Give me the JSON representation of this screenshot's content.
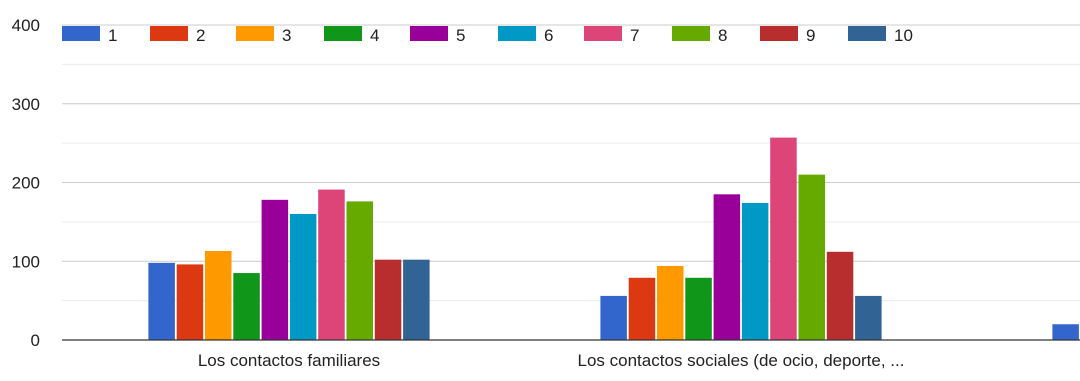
{
  "chart_data": {
    "type": "bar",
    "categories": [
      "Los contactos familiares",
      "Los contactos sociales (de ocio, deporte, ...",
      ""
    ],
    "ylim": [
      0,
      400
    ],
    "yticks": [
      0,
      100,
      200,
      300,
      400
    ],
    "grid": true,
    "legend_position": "top",
    "series": [
      {
        "name": "1",
        "color": "#3366cc",
        "values": [
          98,
          56,
          20
        ]
      },
      {
        "name": "2",
        "color": "#dc3912",
        "values": [
          96,
          79,
          null
        ]
      },
      {
        "name": "3",
        "color": "#ff9900",
        "values": [
          113,
          94,
          null
        ]
      },
      {
        "name": "4",
        "color": "#109618",
        "values": [
          85,
          79,
          null
        ]
      },
      {
        "name": "5",
        "color": "#990099",
        "values": [
          178,
          185,
          null
        ]
      },
      {
        "name": "6",
        "color": "#0099c6",
        "values": [
          160,
          174,
          null
        ]
      },
      {
        "name": "7",
        "color": "#dd4477",
        "values": [
          191,
          257,
          null
        ]
      },
      {
        "name": "8",
        "color": "#66aa00",
        "values": [
          176,
          210,
          null
        ]
      },
      {
        "name": "9",
        "color": "#b82e2e",
        "values": [
          102,
          112,
          null
        ]
      },
      {
        "name": "10",
        "color": "#316395",
        "values": [
          102,
          56,
          null
        ]
      }
    ]
  }
}
